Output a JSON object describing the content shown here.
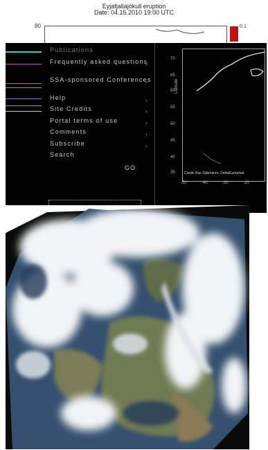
{
  "chart": {
    "title": "Eyjafjallajökull eruption",
    "date": "Date: 04.15.2010 19:00 UTC",
    "ytick_top": "80",
    "colorbar_max": "0.1"
  },
  "menu": {
    "items": [
      {
        "label": "Publications",
        "two": false,
        "selected": true
      },
      {
        "label": "Frequently asked questions",
        "two": true,
        "selected": false
      },
      {
        "label": "SSA-sponsored Conferences",
        "two": true,
        "selected": false
      },
      {
        "label": "Help",
        "two": false,
        "selected": false
      },
      {
        "label": "Site Credits",
        "two": false,
        "selected": false
      },
      {
        "label": "Portal terms of use",
        "two": false,
        "selected": false
      },
      {
        "label": "Comments",
        "two": false,
        "selected": false
      },
      {
        "label": "Subscribe",
        "two": false,
        "selected": false
      },
      {
        "label": "Search",
        "two": false,
        "selected": false
      }
    ],
    "search_go": "GO"
  },
  "map": {
    "ylabel": "Latitude",
    "lat_ticks": [
      "70",
      "65",
      "60",
      "55",
      "50",
      "45",
      "40",
      "35"
    ],
    "lon_ticks": [
      "-50",
      "-40",
      "-30",
      "-20"
    ],
    "credit": "Credit: Bas Sijlsmaren, Delta/Eumetsat"
  },
  "colors": {
    "panel_bg": "#000000",
    "colorbar_red": "#c0150e",
    "strip_colors": [
      "#2bd0d0",
      "#d23cc8",
      "#ffffff",
      "#30c45a",
      "#4a7cff",
      "#d0d0d0"
    ]
  }
}
